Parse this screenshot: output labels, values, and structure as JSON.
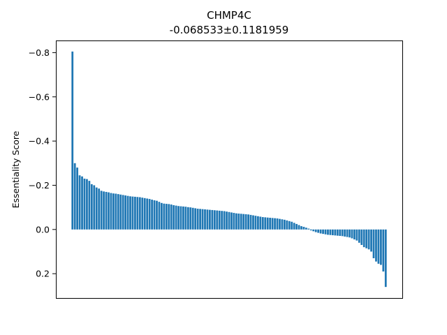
{
  "chart_data": {
    "type": "bar",
    "title": "CHMP4C",
    "subtitle": "-0.068533±0.1181959",
    "xlabel": "",
    "ylabel": "Essentiality Score",
    "y_inverted": true,
    "ylim": [
      0.31,
      -0.855
    ],
    "yticks": [
      {
        "value": -0.8,
        "label": "−0.8"
      },
      {
        "value": -0.6,
        "label": "−0.6"
      },
      {
        "value": -0.4,
        "label": "−0.4"
      },
      {
        "value": -0.2,
        "label": "−0.2"
      },
      {
        "value": 0.0,
        "label": "0.0"
      },
      {
        "value": 0.2,
        "label": "0.2"
      }
    ],
    "x_ticks_shown": false,
    "bar_color": "#1f77b4",
    "values": [
      -0.805,
      -0.3,
      -0.28,
      -0.245,
      -0.24,
      -0.23,
      -0.228,
      -0.22,
      -0.205,
      -0.2,
      -0.19,
      -0.185,
      -0.175,
      -0.172,
      -0.17,
      -0.168,
      -0.165,
      -0.163,
      -0.162,
      -0.16,
      -0.158,
      -0.156,
      -0.154,
      -0.152,
      -0.15,
      -0.149,
      -0.148,
      -0.147,
      -0.146,
      -0.144,
      -0.142,
      -0.14,
      -0.138,
      -0.135,
      -0.132,
      -0.13,
      -0.125,
      -0.12,
      -0.117,
      -0.116,
      -0.115,
      -0.113,
      -0.11,
      -0.108,
      -0.106,
      -0.105,
      -0.104,
      -0.103,
      -0.101,
      -0.1,
      -0.098,
      -0.096,
      -0.094,
      -0.093,
      -0.092,
      -0.091,
      -0.09,
      -0.089,
      -0.088,
      -0.087,
      -0.086,
      -0.085,
      -0.084,
      -0.083,
      -0.081,
      -0.079,
      -0.077,
      -0.075,
      -0.073,
      -0.072,
      -0.071,
      -0.07,
      -0.069,
      -0.068,
      -0.066,
      -0.064,
      -0.062,
      -0.06,
      -0.058,
      -0.056,
      -0.055,
      -0.054,
      -0.053,
      -0.052,
      -0.051,
      -0.05,
      -0.048,
      -0.046,
      -0.044,
      -0.041,
      -0.038,
      -0.035,
      -0.03,
      -0.025,
      -0.02,
      -0.015,
      -0.012,
      -0.008,
      -0.004,
      0.004,
      0.008,
      0.012,
      0.015,
      0.018,
      0.02,
      0.022,
      0.024,
      0.025,
      0.026,
      0.027,
      0.028,
      0.029,
      0.03,
      0.032,
      0.034,
      0.036,
      0.04,
      0.045,
      0.05,
      0.06,
      0.07,
      0.08,
      0.085,
      0.09,
      0.1,
      0.13,
      0.145,
      0.155,
      0.16,
      0.19,
      0.26
    ]
  }
}
